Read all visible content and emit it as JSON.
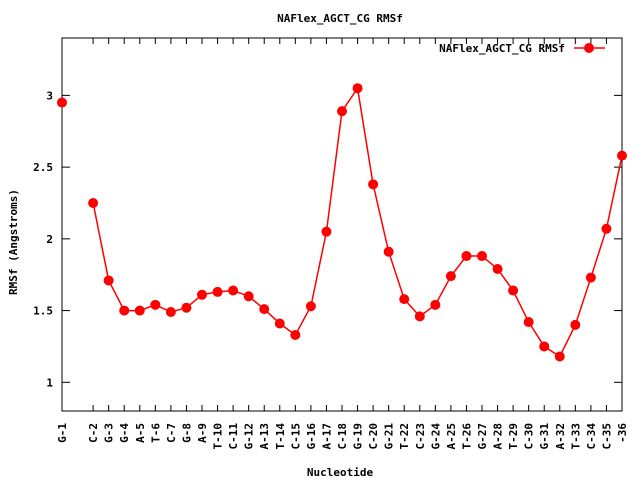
{
  "colors": {
    "series": "#ff0000",
    "axis": "#000000",
    "background": "#ffffff"
  },
  "chart_data": {
    "type": "line",
    "title": "NAFlex_AGCT_CG RMSf",
    "xlabel": "Nucleotide",
    "ylabel": "RMSf (Angstroms)",
    "ylim": [
      0.8,
      3.4
    ],
    "yticks": [
      1,
      1.5,
      2,
      2.5,
      3
    ],
    "ytick_labels": [
      "1",
      "1.5",
      "2",
      "2.5",
      "3"
    ],
    "grid": false,
    "legend_position": "top-right",
    "x": [
      1,
      3,
      4,
      5,
      6,
      7,
      8,
      9,
      10,
      11,
      12,
      13,
      14,
      15,
      16,
      17,
      18,
      19,
      20,
      21,
      22,
      23,
      24,
      25,
      26,
      27,
      28,
      29,
      30,
      31,
      32,
      33,
      34,
      35,
      36,
      37
    ],
    "xlim": [
      1,
      37
    ],
    "categories": [
      "G-1",
      "C-2",
      "G-3",
      "G-4",
      "A-5",
      "T-6",
      "C-7",
      "G-8",
      "A-9",
      "T-10",
      "C-11",
      "G-12",
      "A-13",
      "T-14",
      "C-15",
      "G-16",
      "A-17",
      "C-18",
      "G-19",
      "C-20",
      "G-21",
      "T-22",
      "C-23",
      "G-24",
      "A-25",
      "T-26",
      "G-27",
      "A-28",
      "T-29",
      "C-30",
      "G-31",
      "A-32",
      "T-33",
      "C-34",
      "C-35",
      "-36"
    ],
    "series": [
      {
        "name": "NAFlex_AGCT_CG RMSf",
        "values": [
          2.95,
          2.25,
          1.71,
          1.5,
          1.5,
          1.54,
          1.49,
          1.52,
          1.61,
          1.63,
          1.64,
          1.6,
          1.51,
          1.41,
          1.33,
          1.53,
          2.05,
          2.89,
          3.05,
          2.38,
          1.91,
          1.58,
          1.46,
          1.54,
          1.74,
          1.88,
          1.88,
          1.79,
          1.64,
          1.42,
          1.25,
          1.18,
          1.4,
          1.73,
          2.07,
          2.58
        ]
      }
    ]
  }
}
